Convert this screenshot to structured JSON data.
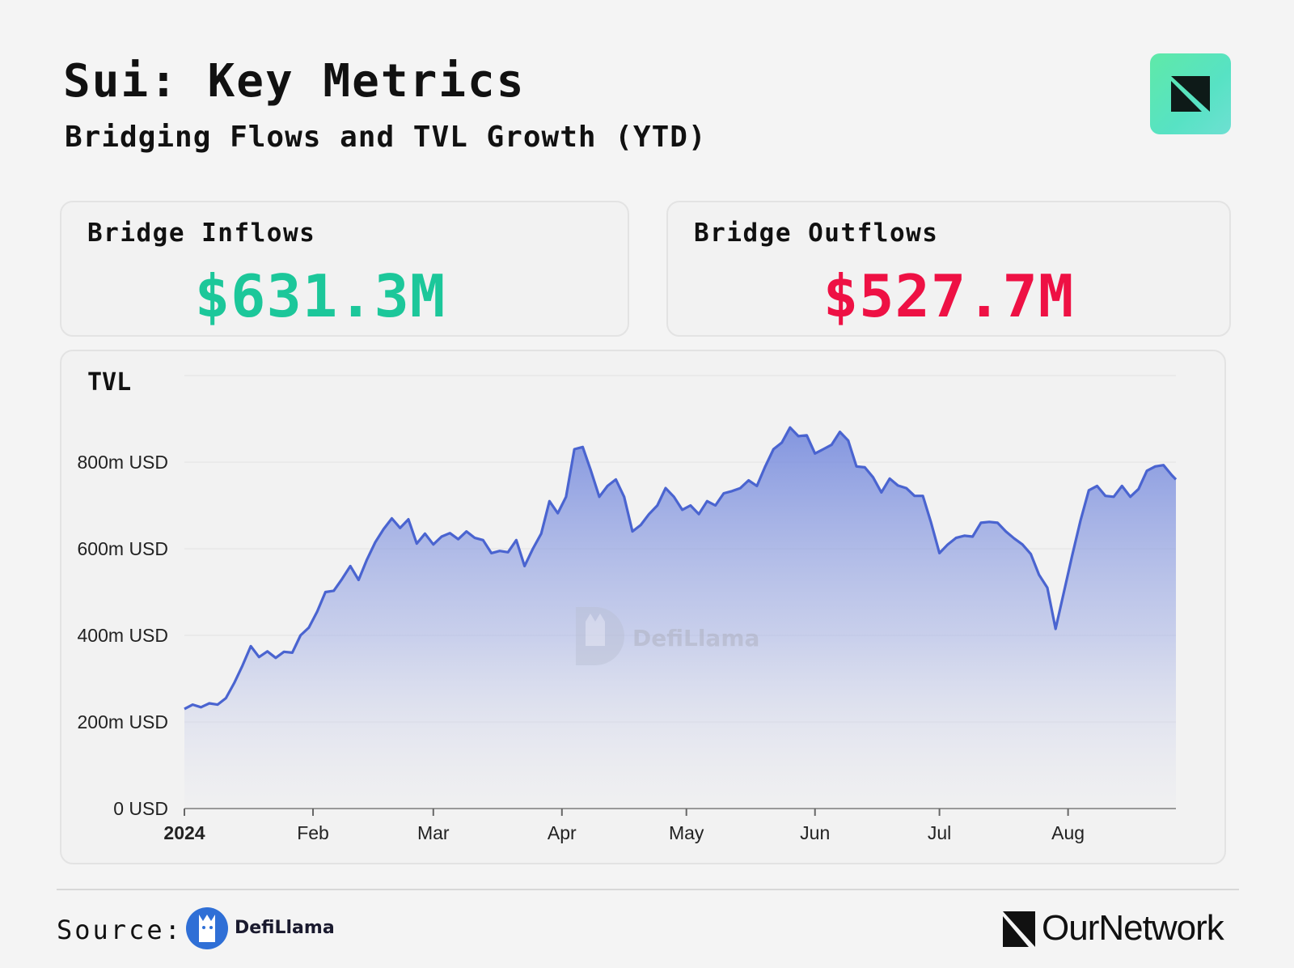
{
  "header": {
    "title": "Sui: Key Metrics",
    "subtitle": "Bridging Flows and TVL Growth (YTD)"
  },
  "metrics": {
    "inflows": {
      "label": "Bridge Inflows",
      "value": "$631.3M",
      "color": "#1cc79a"
    },
    "outflows": {
      "label": "Bridge Outflows",
      "value": "$527.7M",
      "color": "#ee1144"
    }
  },
  "chart_data": {
    "type": "area",
    "title": "TVL",
    "xlabel": "",
    "ylabel": "",
    "ylim": [
      0,
      1000
    ],
    "y_ticks": [
      0,
      200,
      400,
      600,
      800
    ],
    "y_tick_labels": [
      "0 USD",
      "200m USD",
      "400m USD",
      "600m USD",
      "800m USD"
    ],
    "x_tick_labels": [
      "2024",
      "Feb",
      "Mar",
      "Apr",
      "May",
      "Jun",
      "Jul",
      "Aug"
    ],
    "x_tick_dates": [
      "2024-01-01",
      "2024-02-01",
      "2024-03-01",
      "2024-04-01",
      "2024-05-01",
      "2024-06-01",
      "2024-07-01",
      "2024-08-01"
    ],
    "x_range": [
      "2024-01-01",
      "2024-08-27"
    ],
    "watermark": "DefiLlama",
    "color": "#4a64d0",
    "series": [
      {
        "unit": "m USD",
        "points": [
          [
            "2024-01-01",
            230
          ],
          [
            "2024-01-03",
            240
          ],
          [
            "2024-01-05",
            234
          ],
          [
            "2024-01-07",
            243
          ],
          [
            "2024-01-09",
            240
          ],
          [
            "2024-01-11",
            255
          ],
          [
            "2024-01-13",
            290
          ],
          [
            "2024-01-15",
            330
          ],
          [
            "2024-01-17",
            375
          ],
          [
            "2024-01-19",
            350
          ],
          [
            "2024-01-21",
            363
          ],
          [
            "2024-01-23",
            348
          ],
          [
            "2024-01-25",
            362
          ],
          [
            "2024-01-27",
            360
          ],
          [
            "2024-01-29",
            400
          ],
          [
            "2024-01-31",
            418
          ],
          [
            "2024-02-02",
            455
          ],
          [
            "2024-02-04",
            500
          ],
          [
            "2024-02-06",
            503
          ],
          [
            "2024-02-08",
            530
          ],
          [
            "2024-02-10",
            560
          ],
          [
            "2024-02-12",
            528
          ],
          [
            "2024-02-14",
            575
          ],
          [
            "2024-02-16",
            615
          ],
          [
            "2024-02-18",
            645
          ],
          [
            "2024-02-20",
            670
          ],
          [
            "2024-02-22",
            648
          ],
          [
            "2024-02-24",
            668
          ],
          [
            "2024-02-26",
            612
          ],
          [
            "2024-02-28",
            635
          ],
          [
            "2024-03-01",
            610
          ],
          [
            "2024-03-03",
            628
          ],
          [
            "2024-03-05",
            636
          ],
          [
            "2024-03-07",
            622
          ],
          [
            "2024-03-09",
            640
          ],
          [
            "2024-03-11",
            625
          ],
          [
            "2024-03-13",
            620
          ],
          [
            "2024-03-15",
            590
          ],
          [
            "2024-03-17",
            595
          ],
          [
            "2024-03-19",
            592
          ],
          [
            "2024-03-21",
            620
          ],
          [
            "2024-03-23",
            560
          ],
          [
            "2024-03-25",
            600
          ],
          [
            "2024-03-27",
            635
          ],
          [
            "2024-03-29",
            710
          ],
          [
            "2024-03-31",
            682
          ],
          [
            "2024-04-02",
            720
          ],
          [
            "2024-04-04",
            830
          ],
          [
            "2024-04-06",
            835
          ],
          [
            "2024-04-08",
            780
          ],
          [
            "2024-04-10",
            720
          ],
          [
            "2024-04-12",
            745
          ],
          [
            "2024-04-14",
            760
          ],
          [
            "2024-04-16",
            720
          ],
          [
            "2024-04-18",
            640
          ],
          [
            "2024-04-20",
            655
          ],
          [
            "2024-04-22",
            680
          ],
          [
            "2024-04-24",
            700
          ],
          [
            "2024-04-26",
            740
          ],
          [
            "2024-04-28",
            720
          ],
          [
            "2024-04-30",
            690
          ],
          [
            "2024-05-02",
            700
          ],
          [
            "2024-05-04",
            680
          ],
          [
            "2024-05-06",
            710
          ],
          [
            "2024-05-08",
            700
          ],
          [
            "2024-05-10",
            728
          ],
          [
            "2024-05-12",
            733
          ],
          [
            "2024-05-14",
            740
          ],
          [
            "2024-05-16",
            758
          ],
          [
            "2024-05-18",
            745
          ],
          [
            "2024-05-20",
            790
          ],
          [
            "2024-05-22",
            830
          ],
          [
            "2024-05-24",
            845
          ],
          [
            "2024-05-26",
            880
          ],
          [
            "2024-05-28",
            860
          ],
          [
            "2024-05-30",
            862
          ],
          [
            "2024-06-01",
            820
          ],
          [
            "2024-06-03",
            830
          ],
          [
            "2024-06-05",
            840
          ],
          [
            "2024-06-07",
            870
          ],
          [
            "2024-06-09",
            850
          ],
          [
            "2024-06-11",
            790
          ],
          [
            "2024-06-13",
            788
          ],
          [
            "2024-06-15",
            765
          ],
          [
            "2024-06-17",
            730
          ],
          [
            "2024-06-19",
            762
          ],
          [
            "2024-06-21",
            746
          ],
          [
            "2024-06-23",
            740
          ],
          [
            "2024-06-25",
            722
          ],
          [
            "2024-06-27",
            722
          ],
          [
            "2024-06-29",
            660
          ],
          [
            "2024-07-01",
            590
          ],
          [
            "2024-07-03",
            610
          ],
          [
            "2024-07-05",
            625
          ],
          [
            "2024-07-07",
            630
          ],
          [
            "2024-07-09",
            628
          ],
          [
            "2024-07-11",
            660
          ],
          [
            "2024-07-13",
            662
          ],
          [
            "2024-07-15",
            660
          ],
          [
            "2024-07-17",
            640
          ],
          [
            "2024-07-19",
            624
          ],
          [
            "2024-07-21",
            610
          ],
          [
            "2024-07-23",
            588
          ],
          [
            "2024-07-25",
            540
          ],
          [
            "2024-07-27",
            510
          ],
          [
            "2024-07-29",
            415
          ],
          [
            "2024-07-31",
            500
          ],
          [
            "2024-08-02",
            585
          ],
          [
            "2024-08-04",
            665
          ],
          [
            "2024-08-06",
            735
          ],
          [
            "2024-08-08",
            745
          ],
          [
            "2024-08-10",
            722
          ],
          [
            "2024-08-12",
            720
          ],
          [
            "2024-08-14",
            745
          ],
          [
            "2024-08-16",
            720
          ],
          [
            "2024-08-18",
            738
          ],
          [
            "2024-08-20",
            780
          ],
          [
            "2024-08-22",
            790
          ],
          [
            "2024-08-24",
            793
          ],
          [
            "2024-08-26",
            770
          ],
          [
            "2024-08-27",
            760
          ]
        ]
      }
    ]
  },
  "footer": {
    "source_label": "Source:",
    "source_name": "DefiLlama",
    "brand_name": "OurNetwork"
  }
}
